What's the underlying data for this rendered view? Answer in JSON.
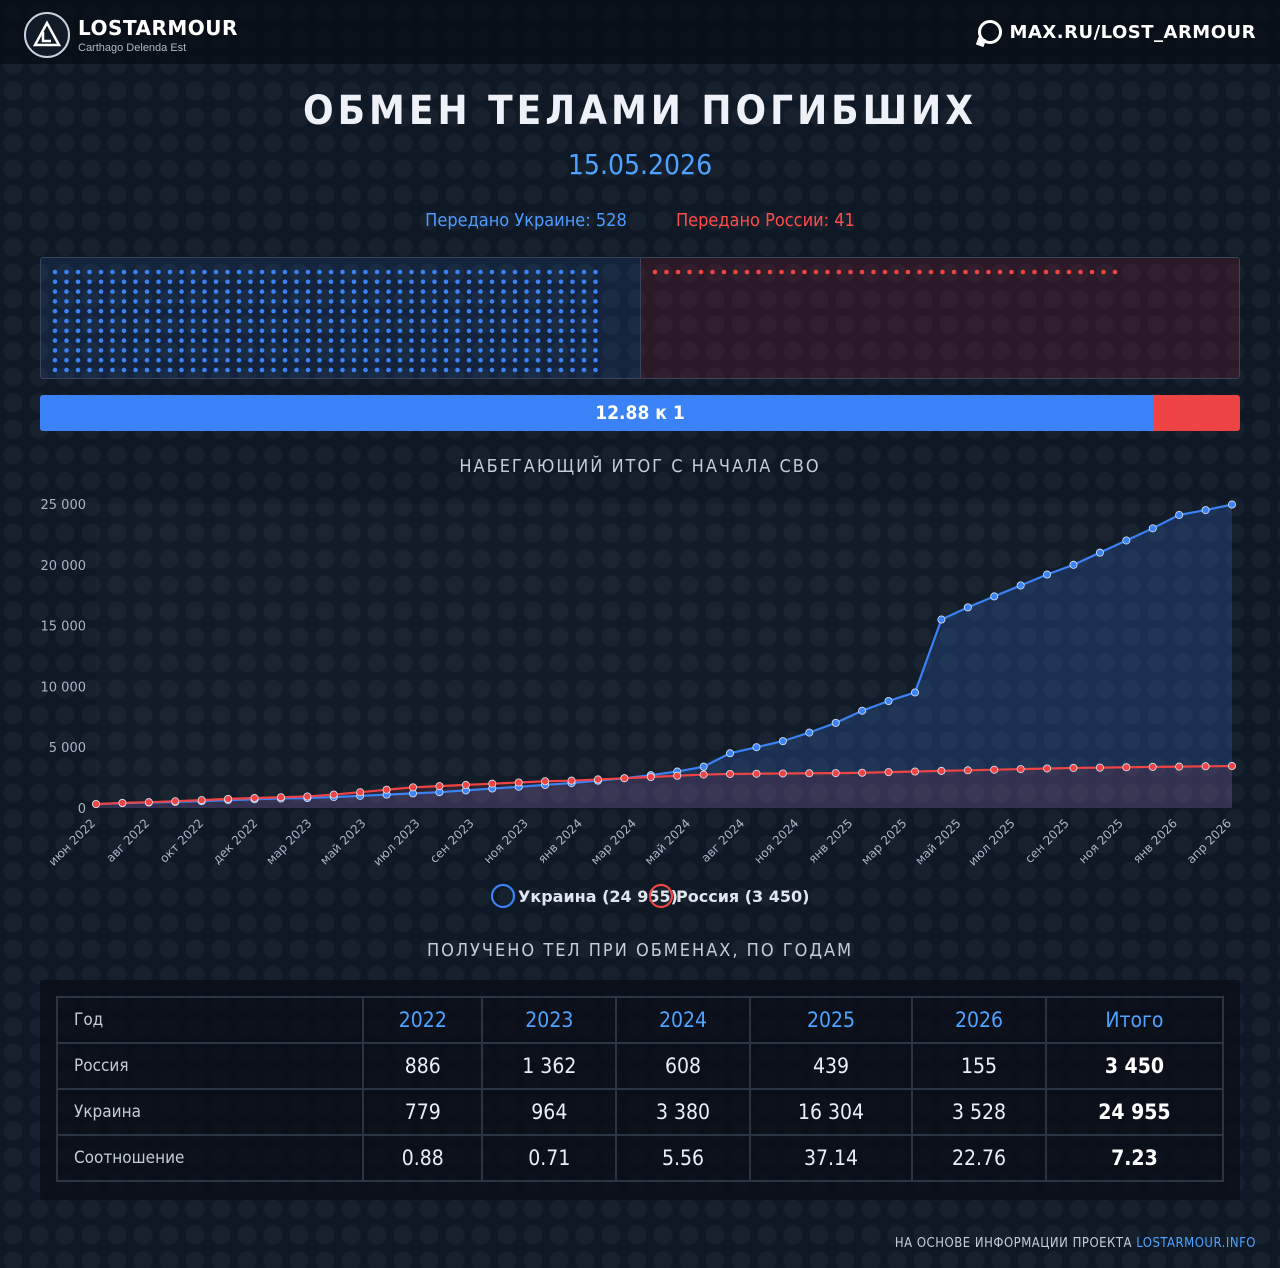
{
  "header": {
    "brand": "LOSTARMOUR",
    "tagline": "Carthago Delenda Est",
    "site": "MAX.RU/LOST_ARMOUR"
  },
  "title": "ОБМЕН ТЕЛАМИ ПОГИБШИХ",
  "date": "15.05.2026",
  "latest_exchange": {
    "ukraine_label": "Передано Украине: 528",
    "russia_label": "Передано России: 41",
    "ukraine_count": 528,
    "russia_count": 41,
    "ratio_label": "12.88 к 1",
    "ukraine_share": 0.928
  },
  "colors": {
    "ukraine": "#3b82f6",
    "russia": "#ef4444",
    "accent": "#4da3ff"
  },
  "chart_title": "НАБЕГАЮЩИЙ ИТОГ С НАЧАЛА СВО",
  "chart_data": {
    "type": "line",
    "ylim": [
      0,
      25000
    ],
    "yticks": [
      0,
      5000,
      10000,
      15000,
      20000,
      25000
    ],
    "ytick_labels": [
      "0",
      "5 000",
      "10 000",
      "15 000",
      "20 000",
      "25 000"
    ],
    "x_count": 44,
    "xtick_labels": [
      "июн 2022",
      "авг 2022",
      "окт 2022",
      "дек 2022",
      "мар 2023",
      "май 2023",
      "июл 2023",
      "сен 2023",
      "ноя 2023",
      "янв 2024",
      "мар 2024",
      "май 2024",
      "авг 2024",
      "ноя 2024",
      "янв 2025",
      "мар 2025",
      "май 2025",
      "июл 2025",
      "сен 2025",
      "ноя 2025",
      "янв 2026",
      "апр 2026"
    ],
    "grid": false,
    "legend_position": "bottom",
    "series": [
      {
        "name": "Украина (24 955)",
        "color": "#3b82f6",
        "values": [
          320,
          400,
          450,
          500,
          560,
          650,
          720,
          779,
          820,
          900,
          1000,
          1100,
          1200,
          1300,
          1450,
          1600,
          1743,
          1900,
          2050,
          2250,
          2450,
          2700,
          3000,
          3400,
          4500,
          5000,
          5500,
          6200,
          7000,
          8000,
          8800,
          9500,
          15500,
          16500,
          17400,
          18300,
          19200,
          20000,
          21000,
          22000,
          23000,
          24100,
          24500,
          24955
        ]
      },
      {
        "name": "Россия (3 450)",
        "color": "#ef4444",
        "values": [
          320,
          420,
          480,
          560,
          650,
          750,
          820,
          886,
          950,
          1100,
          1300,
          1500,
          1700,
          1800,
          1900,
          2000,
          2100,
          2200,
          2248,
          2350,
          2450,
          2550,
          2650,
          2750,
          2800,
          2820,
          2840,
          2856,
          2870,
          2900,
          2950,
          3000,
          3050,
          3100,
          3150,
          3200,
          3250,
          3295,
          3320,
          3350,
          3380,
          3400,
          3430,
          3450
        ]
      }
    ]
  },
  "table_title": "ПОЛУЧЕНО ТЕЛ ПРИ ОБМЕНАХ, ПО ГОДАМ",
  "table": {
    "header": [
      "Год",
      "2022",
      "2023",
      "2024",
      "2025",
      "2026",
      "Итого"
    ],
    "rows": [
      [
        "Россия",
        "886",
        "1 362",
        "608",
        "439",
        "155",
        "3 450"
      ],
      [
        "Украина",
        "779",
        "964",
        "3 380",
        "16 304",
        "3 528",
        "24 955"
      ],
      [
        "Соотношение",
        "0.88",
        "0.71",
        "5.56",
        "37.14",
        "22.76",
        "7.23"
      ]
    ]
  },
  "footer": {
    "prefix": "НА ОСНОВЕ ИНФОРМАЦИИ ПРОЕКТА",
    "link": "LOSTARMOUR.INFO"
  }
}
